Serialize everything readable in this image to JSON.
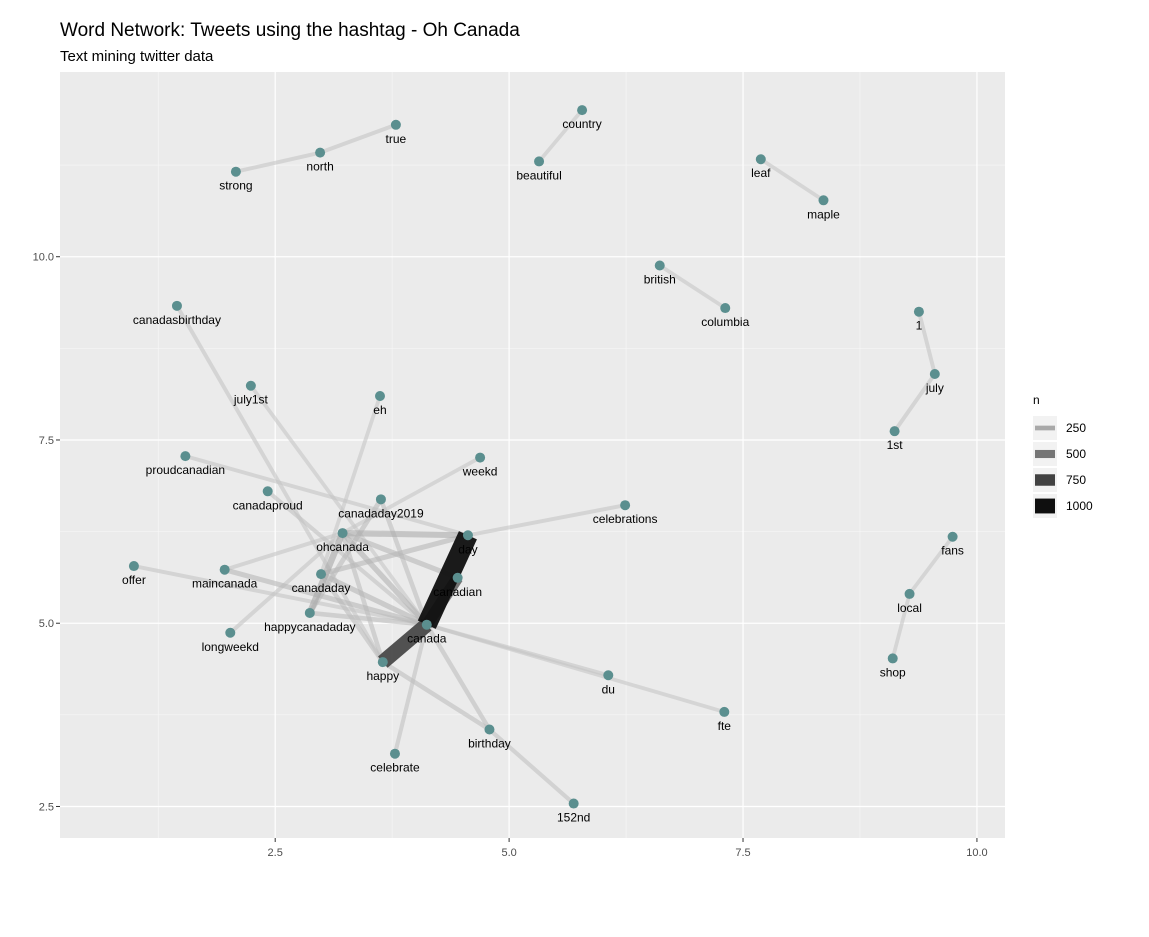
{
  "chart_data": {
    "type": "network",
    "title": "Word Network: Tweets using the hashtag - Oh Canada",
    "subtitle": "Text mining twitter data",
    "xlim": [
      0.2,
      10.3
    ],
    "ylim": [
      2.07,
      12.52
    ],
    "x_ticks": [
      2.5,
      5.0,
      7.5,
      10.0
    ],
    "x_tick_labels": [
      "2.5",
      "5.0",
      "7.5",
      "10.0"
    ],
    "y_ticks": [
      2.5,
      5.0,
      7.5,
      10.0
    ],
    "y_tick_labels": [
      "2.5",
      "5.0",
      "7.5",
      "10.0"
    ],
    "grid": true,
    "node_color": "#5b8f8f",
    "legend": {
      "title": "n",
      "position": "right",
      "entries": [
        {
          "label": "250",
          "value": 250
        },
        {
          "label": "500",
          "value": 500
        },
        {
          "label": "750",
          "value": 750
        },
        {
          "label": "1000",
          "value": 1000
        }
      ]
    },
    "nodes": [
      {
        "label": "strong",
        "x": 2.08,
        "y": 11.16
      },
      {
        "label": "north",
        "x": 2.98,
        "y": 11.42
      },
      {
        "label": "true",
        "x": 3.79,
        "y": 11.8
      },
      {
        "label": "country",
        "x": 5.78,
        "y": 12.0
      },
      {
        "label": "beautiful",
        "x": 5.32,
        "y": 11.3
      },
      {
        "label": "leaf",
        "x": 7.69,
        "y": 11.33
      },
      {
        "label": "maple",
        "x": 8.36,
        "y": 10.77
      },
      {
        "label": "british",
        "x": 6.61,
        "y": 9.88
      },
      {
        "label": "columbia",
        "x": 7.31,
        "y": 9.3
      },
      {
        "label": "canadasbirthday",
        "x": 1.45,
        "y": 9.33
      },
      {
        "label": "1",
        "x": 9.38,
        "y": 9.25
      },
      {
        "label": "july",
        "x": 9.55,
        "y": 8.4
      },
      {
        "label": "1st",
        "x": 9.12,
        "y": 7.62
      },
      {
        "label": "july1st",
        "x": 2.24,
        "y": 8.24
      },
      {
        "label": "eh",
        "x": 3.62,
        "y": 8.1
      },
      {
        "label": "proudcanadian",
        "x": 1.54,
        "y": 7.28
      },
      {
        "label": "weekd",
        "x": 4.69,
        "y": 7.26
      },
      {
        "label": "canadaproud",
        "x": 2.42,
        "y": 6.8
      },
      {
        "label": "canadaday2019",
        "x": 3.63,
        "y": 6.69
      },
      {
        "label": "celebrations",
        "x": 6.24,
        "y": 6.61
      },
      {
        "label": "ohcanada",
        "x": 3.22,
        "y": 6.23
      },
      {
        "label": "day",
        "x": 4.56,
        "y": 6.2
      },
      {
        "label": "fans",
        "x": 9.74,
        "y": 6.18
      },
      {
        "label": "offer",
        "x": 0.99,
        "y": 5.78
      },
      {
        "label": "maincanada",
        "x": 1.96,
        "y": 5.73
      },
      {
        "label": "canadaday",
        "x": 2.99,
        "y": 5.67
      },
      {
        "label": "canadian",
        "x": 4.45,
        "y": 5.62
      },
      {
        "label": "local",
        "x": 9.28,
        "y": 5.4
      },
      {
        "label": "happycanadaday",
        "x": 2.87,
        "y": 5.14
      },
      {
        "label": "canada",
        "x": 4.12,
        "y": 4.98
      },
      {
        "label": "longweekd",
        "x": 2.02,
        "y": 4.87
      },
      {
        "label": "happy",
        "x": 3.65,
        "y": 4.47
      },
      {
        "label": "shop",
        "x": 9.1,
        "y": 4.52
      },
      {
        "label": "du",
        "x": 6.06,
        "y": 4.29
      },
      {
        "label": "fte",
        "x": 7.3,
        "y": 3.79
      },
      {
        "label": "birthday",
        "x": 4.79,
        "y": 3.55
      },
      {
        "label": "celebrate",
        "x": 3.78,
        "y": 3.22
      },
      {
        "label": "152nd",
        "x": 5.69,
        "y": 2.54
      }
    ],
    "edges": [
      {
        "from": "strong",
        "to": "north",
        "n": 120
      },
      {
        "from": "north",
        "to": "true",
        "n": 120
      },
      {
        "from": "beautiful",
        "to": "country",
        "n": 110
      },
      {
        "from": "leaf",
        "to": "maple",
        "n": 110
      },
      {
        "from": "british",
        "to": "columbia",
        "n": 110
      },
      {
        "from": "1",
        "to": "july",
        "n": 120
      },
      {
        "from": "july",
        "to": "1st",
        "n": 120
      },
      {
        "from": "fans",
        "to": "local",
        "n": 110
      },
      {
        "from": "local",
        "to": "shop",
        "n": 110
      },
      {
        "from": "canadasbirthday",
        "to": "happy",
        "n": 120
      },
      {
        "from": "july1st",
        "to": "canada",
        "n": 110
      },
      {
        "from": "eh",
        "to": "canadaday",
        "n": 110
      },
      {
        "from": "proudcanadian",
        "to": "day",
        "n": 115
      },
      {
        "from": "weekd",
        "to": "ohcanada",
        "n": 110
      },
      {
        "from": "canadaproud",
        "to": "canada",
        "n": 130
      },
      {
        "from": "canadaday2019",
        "to": "canada",
        "n": 150
      },
      {
        "from": "canadaday2019",
        "to": "happycanadaday",
        "n": 170
      },
      {
        "from": "ohcanada",
        "to": "day",
        "n": 240
      },
      {
        "from": "ohcanada",
        "to": "canadian",
        "n": 180
      },
      {
        "from": "ohcanada",
        "to": "canada",
        "n": 200
      },
      {
        "from": "ohcanada",
        "to": "happy",
        "n": 150
      },
      {
        "from": "ohcanada",
        "to": "happycanadaday",
        "n": 260
      },
      {
        "from": "ohcanada",
        "to": "longweekd",
        "n": 120
      },
      {
        "from": "ohcanada",
        "to": "maincanada",
        "n": 120
      },
      {
        "from": "day",
        "to": "celebrations",
        "n": 120
      },
      {
        "from": "day",
        "to": "canadaday",
        "n": 180
      },
      {
        "from": "offer",
        "to": "canada",
        "n": 120
      },
      {
        "from": "maincanada",
        "to": "canada",
        "n": 180
      },
      {
        "from": "canadaday",
        "to": "canada",
        "n": 190
      },
      {
        "from": "canadaday",
        "to": "happy",
        "n": 150
      },
      {
        "from": "happycanadaday",
        "to": "canada",
        "n": 160
      },
      {
        "from": "canada",
        "to": "day",
        "n": 1000
      },
      {
        "from": "canada",
        "to": "canadian",
        "n": 540
      },
      {
        "from": "canada",
        "to": "happy",
        "n": 720
      },
      {
        "from": "canada",
        "to": "du",
        "n": 120
      },
      {
        "from": "canada",
        "to": "fte",
        "n": 110
      },
      {
        "from": "canada",
        "to": "birthday",
        "n": 150
      },
      {
        "from": "canada",
        "to": "celebrate",
        "n": 130
      },
      {
        "from": "happy",
        "to": "birthday",
        "n": 150
      },
      {
        "from": "birthday",
        "to": "152nd",
        "n": 130
      }
    ]
  }
}
